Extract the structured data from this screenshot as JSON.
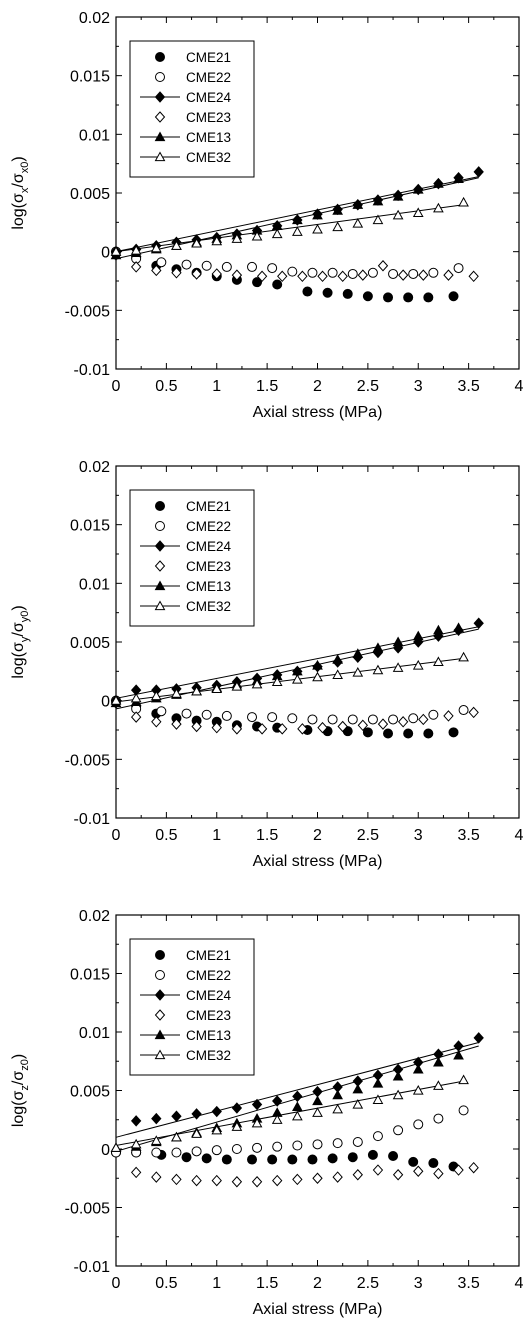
{
  "chart_data": [
    {
      "type": "scatter",
      "ylabel_prefix": "log(σ",
      "ylabel_sub1": "x",
      "ylabel_mid": "/σ",
      "ylabel_sub2": "x0",
      "ylabel_suffix": ")",
      "xlabel": "Axial stress (MPa)",
      "xlim": [
        0,
        4
      ],
      "ylim": [
        -0.01,
        0.02
      ],
      "xticks": [
        "0",
        "0.5",
        "1",
        "1.5",
        "2",
        "2.5",
        "3",
        "3.5",
        "4"
      ],
      "yticks": [
        "-0.01",
        "-0.005",
        "0",
        "0.005",
        "0.01",
        "0.015",
        "0.02"
      ],
      "legend_position": "top-left",
      "series": [
        {
          "name": "CME21",
          "marker": "circle-filled",
          "line": false,
          "x": [
            0,
            0.2,
            0.4,
            0.6,
            0.8,
            1.0,
            1.2,
            1.4,
            1.6,
            1.9,
            2.1,
            2.3,
            2.5,
            2.7,
            2.9,
            3.1,
            3.35
          ],
          "y": [
            0,
            -0.0005,
            -0.0012,
            -0.0015,
            -0.0018,
            -0.0021,
            -0.0024,
            -0.0026,
            -0.0028,
            -0.0034,
            -0.0035,
            -0.0036,
            -0.0038,
            -0.0039,
            -0.0039,
            -0.0039,
            -0.0038
          ]
        },
        {
          "name": "CME22",
          "marker": "circle-open",
          "line": false,
          "x": [
            0,
            0.2,
            0.45,
            0.7,
            0.9,
            1.1,
            1.35,
            1.55,
            1.75,
            1.95,
            2.15,
            2.35,
            2.55,
            2.75,
            2.95,
            3.15,
            3.4
          ],
          "y": [
            0,
            -0.0006,
            -0.0009,
            -0.0011,
            -0.0012,
            -0.0013,
            -0.0013,
            -0.0014,
            -0.0017,
            -0.0018,
            -0.0018,
            -0.0019,
            -0.0018,
            -0.0019,
            -0.0019,
            -0.0018,
            -0.0014
          ]
        },
        {
          "name": "CME24",
          "marker": "diamond-filled",
          "line": true,
          "x": [
            0,
            0.2,
            0.4,
            0.6,
            0.8,
            1.0,
            1.2,
            1.4,
            1.6,
            1.8,
            2.0,
            2.2,
            2.4,
            2.6,
            2.8,
            3.0,
            3.2,
            3.4,
            3.6
          ],
          "y": [
            0,
            0.0002,
            0.0005,
            0.0008,
            0.001,
            0.0012,
            0.0015,
            0.0018,
            0.0022,
            0.0027,
            0.0032,
            0.0036,
            0.004,
            0.0044,
            0.0048,
            0.0053,
            0.0058,
            0.0063,
            0.0068
          ]
        },
        {
          "name": "CME23",
          "marker": "diamond-open",
          "line": false,
          "x": [
            0,
            0.2,
            0.4,
            0.6,
            0.8,
            1.0,
            1.2,
            1.45,
            1.65,
            1.85,
            2.05,
            2.25,
            2.45,
            2.65,
            2.85,
            3.05,
            3.3,
            3.55
          ],
          "y": [
            -0.0003,
            -0.0013,
            -0.0016,
            -0.0018,
            -0.0019,
            -0.0019,
            -0.002,
            -0.0021,
            -0.0021,
            -0.0021,
            -0.0021,
            -0.0021,
            -0.002,
            -0.0012,
            -0.002,
            -0.002,
            -0.002,
            -0.0021
          ]
        },
        {
          "name": "CME13",
          "marker": "triangle-filled",
          "line": true,
          "x": [
            0,
            0.2,
            0.4,
            0.6,
            0.8,
            1.0,
            1.2,
            1.4,
            1.6,
            1.8,
            2.0,
            2.2,
            2.4,
            2.6,
            2.8,
            3.0,
            3.2,
            3.4
          ],
          "y": [
            -0.0003,
            -0.0001,
            0.0002,
            0.0005,
            0.0008,
            0.0011,
            0.0014,
            0.0018,
            0.0022,
            0.0027,
            0.0031,
            0.0035,
            0.004,
            0.0043,
            0.0047,
            0.0053,
            0.0058,
            0.0062
          ]
        },
        {
          "name": "CME32",
          "marker": "triangle-open",
          "line": true,
          "x": [
            0,
            0.2,
            0.4,
            0.6,
            0.8,
            1.0,
            1.2,
            1.4,
            1.6,
            1.8,
            2.0,
            2.2,
            2.4,
            2.6,
            2.8,
            3.0,
            3.2,
            3.45
          ],
          "y": [
            0,
            0.0001,
            0.0003,
            0.0005,
            0.0007,
            0.0009,
            0.0011,
            0.0013,
            0.0015,
            0.0017,
            0.0019,
            0.0021,
            0.0024,
            0.0027,
            0.0031,
            0.0033,
            0.0037,
            0.0042
          ]
        }
      ],
      "fit_lines": [
        {
          "series": "CME24",
          "x": [
            0,
            3.6
          ],
          "y": [
            0,
            0.0064
          ]
        },
        {
          "series": "CME13",
          "x": [
            0,
            3.6
          ],
          "y": [
            -0.0006,
            0.0063
          ]
        },
        {
          "series": "CME32",
          "x": [
            0,
            3.45
          ],
          "y": [
            0,
            0.004
          ]
        }
      ]
    },
    {
      "type": "scatter",
      "ylabel_prefix": "log(σ",
      "ylabel_sub1": "y",
      "ylabel_mid": "/σ",
      "ylabel_sub2": "y0",
      "ylabel_suffix": ")",
      "xlabel": "Axial stress (MPa)",
      "xlim": [
        0,
        4
      ],
      "ylim": [
        -0.01,
        0.02
      ],
      "xticks": [
        "0",
        "0.5",
        "1",
        "1.5",
        "2",
        "2.5",
        "3",
        "3.5",
        "4"
      ],
      "yticks": [
        "-0.01",
        "-0.005",
        "0",
        "0.005",
        "0.01",
        "0.015",
        "0.02"
      ],
      "legend_position": "top-left",
      "series": [
        {
          "name": "CME21",
          "marker": "circle-filled",
          "line": false,
          "x": [
            0,
            0.2,
            0.4,
            0.6,
            0.8,
            1.0,
            1.2,
            1.4,
            1.6,
            1.9,
            2.1,
            2.3,
            2.5,
            2.7,
            2.9,
            3.1,
            3.35
          ],
          "y": [
            0,
            -0.0005,
            -0.0011,
            -0.0015,
            -0.0017,
            -0.0018,
            -0.0021,
            -0.0022,
            -0.0023,
            -0.0025,
            -0.0026,
            -0.0026,
            -0.0027,
            -0.0028,
            -0.0028,
            -0.0028,
            -0.0027
          ]
        },
        {
          "name": "CME22",
          "marker": "circle-open",
          "line": false,
          "x": [
            0,
            0.2,
            0.45,
            0.7,
            0.9,
            1.1,
            1.35,
            1.55,
            1.75,
            1.95,
            2.15,
            2.35,
            2.55,
            2.75,
            2.95,
            3.15,
            3.45
          ],
          "y": [
            0,
            -0.0007,
            -0.0009,
            -0.0011,
            -0.0012,
            -0.0013,
            -0.0014,
            -0.0014,
            -0.0015,
            -0.0016,
            -0.0016,
            -0.0016,
            -0.0016,
            -0.0016,
            -0.0015,
            -0.0012,
            -0.0008
          ]
        },
        {
          "name": "CME24",
          "marker": "diamond-filled",
          "line": true,
          "x": [
            0,
            0.2,
            0.4,
            0.6,
            0.8,
            1.0,
            1.2,
            1.4,
            1.6,
            1.8,
            2.0,
            2.2,
            2.4,
            2.6,
            2.8,
            3.0,
            3.2,
            3.4,
            3.6
          ],
          "y": [
            0,
            0.0009,
            0.0009,
            0.001,
            0.0011,
            0.0013,
            0.0016,
            0.0019,
            0.0022,
            0.0025,
            0.0029,
            0.0033,
            0.0037,
            0.0041,
            0.0045,
            0.005,
            0.0055,
            0.006,
            0.0066
          ]
        },
        {
          "name": "CME23",
          "marker": "diamond-open",
          "line": false,
          "x": [
            0,
            0.2,
            0.4,
            0.6,
            0.8,
            1.0,
            1.2,
            1.45,
            1.65,
            1.85,
            2.05,
            2.25,
            2.45,
            2.65,
            2.85,
            3.05,
            3.3,
            3.55
          ],
          "y": [
            -0.0002,
            -0.0014,
            -0.0018,
            -0.002,
            -0.0022,
            -0.0023,
            -0.0024,
            -0.0024,
            -0.0024,
            -0.0024,
            -0.0023,
            -0.0022,
            -0.0021,
            -0.002,
            -0.0018,
            -0.0016,
            -0.0013,
            -0.001
          ]
        },
        {
          "name": "CME13",
          "marker": "triangle-filled",
          "line": true,
          "x": [
            0,
            0.2,
            0.4,
            0.6,
            0.8,
            1.0,
            1.2,
            1.4,
            1.6,
            1.8,
            2.0,
            2.2,
            2.4,
            2.6,
            2.8,
            3.0,
            3.2,
            3.4
          ],
          "y": [
            -0.0002,
            -0.0001,
            0.0002,
            0.0005,
            0.0008,
            0.0011,
            0.0014,
            0.0017,
            0.0021,
            0.0025,
            0.003,
            0.0035,
            0.004,
            0.0045,
            0.005,
            0.0055,
            0.006,
            0.0062
          ]
        },
        {
          "name": "CME32",
          "marker": "triangle-open",
          "line": true,
          "x": [
            0,
            0.2,
            0.4,
            0.6,
            0.8,
            1.0,
            1.2,
            1.4,
            1.6,
            1.8,
            2.0,
            2.2,
            2.4,
            2.6,
            2.8,
            3.0,
            3.2,
            3.45
          ],
          "y": [
            0,
            0.0002,
            0.0004,
            0.0006,
            0.0008,
            0.001,
            0.0012,
            0.0014,
            0.0016,
            0.0018,
            0.002,
            0.0022,
            0.0024,
            0.0026,
            0.0028,
            0.003,
            0.0033,
            0.0037
          ]
        }
      ],
      "fit_lines": [
        {
          "series": "CME24",
          "x": [
            0,
            3.6
          ],
          "y": [
            0.0002,
            0.0063
          ]
        },
        {
          "series": "CME13",
          "x": [
            0,
            3.6
          ],
          "y": [
            -0.0007,
            0.0061
          ]
        },
        {
          "series": "CME32",
          "x": [
            0,
            3.45
          ],
          "y": [
            -0.0001,
            0.0036
          ]
        }
      ]
    },
    {
      "type": "scatter",
      "ylabel_prefix": "log(σ",
      "ylabel_sub1": "z",
      "ylabel_mid": "/σ",
      "ylabel_sub2": "z0",
      "ylabel_suffix": ")",
      "xlabel": "Axial stress (MPa)",
      "xlim": [
        0,
        4
      ],
      "ylim": [
        -0.01,
        0.02
      ],
      "xticks": [
        "0",
        "0.5",
        "1",
        "1.5",
        "2",
        "2.5",
        "3",
        "3.5",
        "4"
      ],
      "yticks": [
        "-0.01",
        "-0.005",
        "0",
        "0.005",
        "0.01",
        "0.015",
        "0.02"
      ],
      "legend_position": "top-left",
      "series": [
        {
          "name": "CME21",
          "marker": "circle-filled",
          "line": false,
          "x": [
            0,
            0.2,
            0.45,
            0.7,
            0.9,
            1.1,
            1.35,
            1.55,
            1.75,
            1.95,
            2.15,
            2.35,
            2.55,
            2.75,
            2.95,
            3.15,
            3.35
          ],
          "y": [
            -0.0003,
            -0.0003,
            -0.0005,
            -0.0007,
            -0.0008,
            -0.0009,
            -0.0009,
            -0.0009,
            -0.0009,
            -0.0009,
            -0.0008,
            -0.0007,
            -0.0005,
            -0.0006,
            -0.0011,
            -0.0012,
            -0.0015
          ]
        },
        {
          "name": "CME22",
          "marker": "circle-open",
          "line": false,
          "x": [
            0,
            0.2,
            0.4,
            0.6,
            0.8,
            1.0,
            1.2,
            1.4,
            1.6,
            1.8,
            2.0,
            2.2,
            2.4,
            2.6,
            2.8,
            3.0,
            3.2,
            3.45
          ],
          "y": [
            -0.0003,
            -0.0003,
            -0.0003,
            -0.0003,
            -0.0002,
            -0.0001,
            0,
            0.0001,
            0.0002,
            0.0003,
            0.0004,
            0.0005,
            0.0006,
            0.0011,
            0.0016,
            0.0021,
            0.0026,
            0.0033
          ]
        },
        {
          "name": "CME24",
          "marker": "diamond-filled",
          "line": true,
          "x": [
            0.2,
            0.4,
            0.6,
            0.8,
            1.0,
            1.2,
            1.4,
            1.6,
            1.8,
            2.0,
            2.2,
            2.4,
            2.6,
            2.8,
            3.0,
            3.2,
            3.4,
            3.6
          ],
          "y": [
            0.0024,
            0.0026,
            0.0028,
            0.003,
            0.0032,
            0.0035,
            0.0038,
            0.0041,
            0.0045,
            0.0049,
            0.0053,
            0.0058,
            0.0063,
            0.0068,
            0.0074,
            0.0081,
            0.0088,
            0.0095
          ]
        },
        {
          "name": "CME23",
          "marker": "diamond-open",
          "line": false,
          "x": [
            0.2,
            0.4,
            0.6,
            0.8,
            1.0,
            1.2,
            1.4,
            1.6,
            1.8,
            2.0,
            2.2,
            2.4,
            2.6,
            2.8,
            3.0,
            3.2,
            3.4,
            3.55
          ],
          "y": [
            -0.002,
            -0.0024,
            -0.0026,
            -0.0027,
            -0.0027,
            -0.0028,
            -0.0028,
            -0.0027,
            -0.0026,
            -0.0025,
            -0.0024,
            -0.0022,
            -0.0018,
            -0.0022,
            -0.0019,
            -0.0021,
            -0.0018,
            -0.0016
          ]
        },
        {
          "name": "CME13",
          "marker": "triangle-filled",
          "line": true,
          "x": [
            0,
            0.2,
            0.4,
            0.6,
            0.8,
            1.0,
            1.2,
            1.4,
            1.6,
            1.8,
            2.0,
            2.2,
            2.4,
            2.6,
            2.8,
            3.0,
            3.2,
            3.4
          ],
          "y": [
            0.0001,
            0.0002,
            0.0006,
            0.001,
            0.0014,
            0.0018,
            0.0022,
            0.0026,
            0.0031,
            0.0036,
            0.0041,
            0.0046,
            0.0051,
            0.0056,
            0.0062,
            0.0068,
            0.0074,
            0.008
          ]
        },
        {
          "name": "CME32",
          "marker": "triangle-open",
          "line": true,
          "x": [
            0,
            0.2,
            0.4,
            0.6,
            0.8,
            1.0,
            1.2,
            1.4,
            1.6,
            1.8,
            2.0,
            2.2,
            2.4,
            2.6,
            2.8,
            3.0,
            3.2,
            3.45
          ],
          "y": [
            0.0001,
            0.0004,
            0.0007,
            0.001,
            0.0013,
            0.0016,
            0.0019,
            0.0022,
            0.0025,
            0.0028,
            0.0031,
            0.0034,
            0.0038,
            0.0042,
            0.0046,
            0.005,
            0.0054,
            0.0059
          ]
        }
      ],
      "fit_lines": [
        {
          "series": "CME24",
          "x": [
            0,
            3.6
          ],
          "y": [
            0.001,
            0.0091
          ]
        },
        {
          "series": "CME13",
          "x": [
            0,
            3.6
          ],
          "y": [
            -0.0002,
            0.0088
          ]
        },
        {
          "series": "CME32",
          "x": [
            0,
            3.45
          ],
          "y": [
            0.0003,
            0.0058
          ]
        }
      ]
    }
  ]
}
